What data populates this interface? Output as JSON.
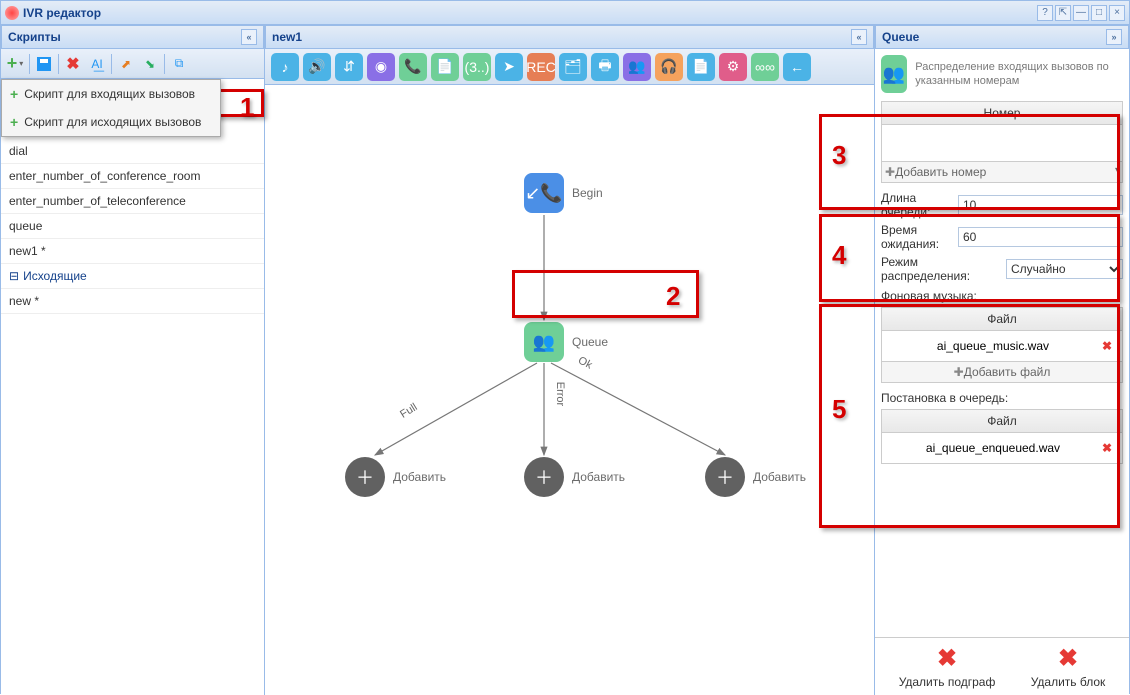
{
  "window": {
    "title": "IVR редактор"
  },
  "left": {
    "title": "Скрипты",
    "dropdown": {
      "item1": "Скрипт для входящих вызовов",
      "item2": "Скрипт для исходящих вызовов"
    },
    "items": [
      "dial",
      "enter_number_of_conference_room",
      "enter_number_of_teleconference",
      "queue",
      "new1 *"
    ],
    "section_out": "Исходящие",
    "items_out": [
      "new *"
    ]
  },
  "center": {
    "tab": "new1",
    "palette_colors": [
      "#4bb3e6",
      "#4bb3e6",
      "#4bb3e6",
      "#8a6fe6",
      "#6fcf97",
      "#6fcf97",
      "#6fcf97",
      "#4bb3e6",
      "#e67e55",
      "#4bb3e6",
      "#4bb3e6",
      "#8a6fe6",
      "#f5a25d",
      "#4bb3e6",
      "#e05d8a",
      "#6fcf97",
      "#4bb3e6"
    ],
    "palette_glyphs": [
      "♪",
      "🔊",
      "⇵",
      "◉",
      "📞",
      "📄",
      "(3..)",
      "➤",
      "REC",
      "🗂",
      "🖶",
      "👥",
      "🎧",
      "📄",
      "⚙",
      "∞∞",
      "←"
    ],
    "begin_label": "Begin",
    "queue_label": "Queue",
    "add_label": "Добавить",
    "edge_full": "Full",
    "edge_error": "Error",
    "edge_ok": "Ok",
    "begin_color": "#4b8fe6",
    "queue_color": "#6fcf97"
  },
  "right": {
    "title": "Queue",
    "desc": "Распределение входящих вызовов по указанным номерам",
    "number_header": "Номер",
    "add_number": "Добавить номер",
    "len_label": "Длина очереди:",
    "len_value": "10",
    "wait_label": "Время ожидания:",
    "wait_value": "60",
    "mode_label": "Режим распределения:",
    "mode_value": "Случайно",
    "bg_music_label": "Фоновая музыка:",
    "file_header": "Файл",
    "file1": "ai_queue_music.wav",
    "add_file": "Добавить файл",
    "enqueue_label": "Постановка в очередь:",
    "file2": "ai_queue_enqueued.wav",
    "del_sub": "Удалить подграф",
    "del_block": "Удалить блок"
  },
  "annot": {
    "n1": "1",
    "n2": "2",
    "n3": "3",
    "n4": "4",
    "n5": "5"
  }
}
